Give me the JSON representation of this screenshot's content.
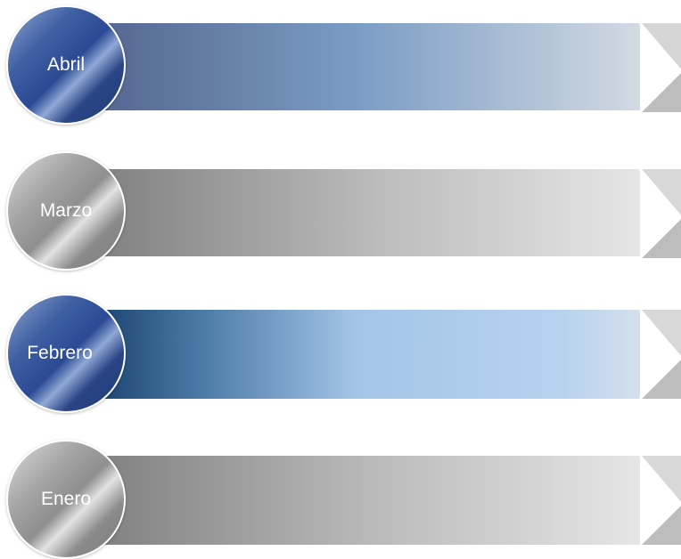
{
  "rows": [
    {
      "label": "Abril",
      "theme": "blue"
    },
    {
      "label": "Marzo",
      "theme": "gray"
    },
    {
      "label": "Febrero",
      "theme": "blue-light"
    },
    {
      "label": "Enero",
      "theme": "gray"
    }
  ],
  "colors": {
    "blue_dark": "#2b4a93",
    "blue_mid": "#8ca6cf",
    "blue_light": "#b7d0ec",
    "navy": "#1b4270",
    "gray_dark": "#7e7e7e",
    "gray_light": "#e5e5e5",
    "chevron": "#c2c2c2"
  }
}
